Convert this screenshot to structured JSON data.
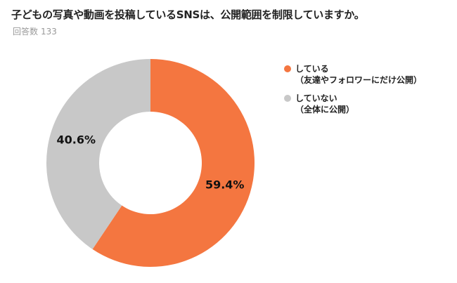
{
  "title": "子どもの写真や動画を投稿しているSNSは、公開範囲を制限していますか。",
  "subtitle": {
    "label": "回答数",
    "count": "133"
  },
  "chart_data": {
    "type": "pie",
    "donut": true,
    "categories": [
      "している（友達やフォロワーにだけ公開）",
      "していない（全体に公開）"
    ],
    "values": [
      59.4,
      40.6
    ],
    "value_labels": [
      "59.4%",
      "40.6%"
    ],
    "colors": [
      "#f47640",
      "#c8c8c8"
    ],
    "legend_position": "right",
    "legend": [
      {
        "line1": "している",
        "line2": "（友達やフォロワーにだけ公開）",
        "color": "#f47640"
      },
      {
        "line1": "していない",
        "line2": "（全体に公開）",
        "color": "#c8c8c8"
      }
    ]
  }
}
